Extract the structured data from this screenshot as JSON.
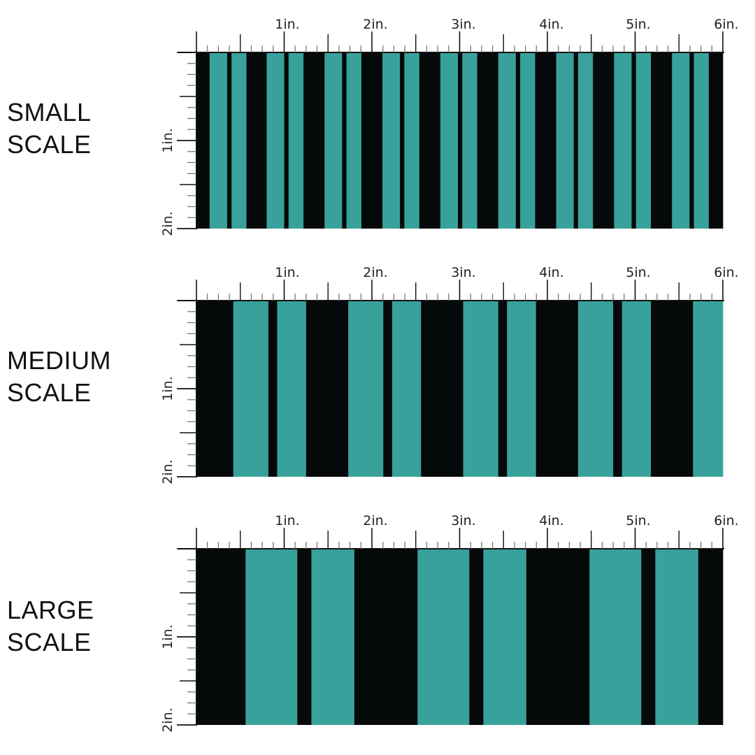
{
  "colors": {
    "stripe_teal": "#39a19b",
    "stripe_black": "#050909",
    "ruler_line": "#111111",
    "tick_gray": "#777777"
  },
  "ruler": {
    "top_labels": [
      "1in.",
      "2in.",
      "3in.",
      "4in.",
      "5in.",
      "6in."
    ],
    "side_labels": [
      "1in.",
      "2in."
    ]
  },
  "panels": [
    {
      "label_line1": "SMALL",
      "label_line2": "SCALE",
      "pattern": "teal and black vertical stripes, small scale",
      "stripes": [
        {
          "color": "black",
          "from_in": 0.0,
          "to_in": 0.15
        },
        {
          "color": "teal",
          "from_in": 0.15,
          "to_in": 0.35
        },
        {
          "color": "black",
          "from_in": 0.35,
          "to_in": 0.4
        },
        {
          "color": "teal",
          "from_in": 0.4,
          "to_in": 0.57
        },
        {
          "color": "black",
          "from_in": 0.57,
          "to_in": 0.8
        },
        {
          "color": "teal",
          "from_in": 0.8,
          "to_in": 1.0
        },
        {
          "color": "black",
          "from_in": 1.0,
          "to_in": 1.05
        },
        {
          "color": "teal",
          "from_in": 1.05,
          "to_in": 1.22
        },
        {
          "color": "black",
          "from_in": 1.22,
          "to_in": 1.46
        },
        {
          "color": "teal",
          "from_in": 1.46,
          "to_in": 1.66
        },
        {
          "color": "black",
          "from_in": 1.66,
          "to_in": 1.71
        },
        {
          "color": "teal",
          "from_in": 1.71,
          "to_in": 1.88
        },
        {
          "color": "black",
          "from_in": 1.88,
          "to_in": 2.12
        },
        {
          "color": "teal",
          "from_in": 2.12,
          "to_in": 2.32
        },
        {
          "color": "black",
          "from_in": 2.32,
          "to_in": 2.37
        },
        {
          "color": "teal",
          "from_in": 2.37,
          "to_in": 2.54
        },
        {
          "color": "black",
          "from_in": 2.54,
          "to_in": 2.78
        },
        {
          "color": "teal",
          "from_in": 2.78,
          "to_in": 2.98
        },
        {
          "color": "black",
          "from_in": 2.98,
          "to_in": 3.03
        },
        {
          "color": "teal",
          "from_in": 3.03,
          "to_in": 3.2
        },
        {
          "color": "black",
          "from_in": 3.2,
          "to_in": 3.44
        },
        {
          "color": "teal",
          "from_in": 3.44,
          "to_in": 3.64
        },
        {
          "color": "black",
          "from_in": 3.64,
          "to_in": 3.69
        },
        {
          "color": "teal",
          "from_in": 3.69,
          "to_in": 3.86
        },
        {
          "color": "black",
          "from_in": 3.86,
          "to_in": 4.1
        },
        {
          "color": "teal",
          "from_in": 4.1,
          "to_in": 4.3
        },
        {
          "color": "black",
          "from_in": 4.3,
          "to_in": 4.35
        },
        {
          "color": "teal",
          "from_in": 4.35,
          "to_in": 4.52
        },
        {
          "color": "black",
          "from_in": 4.52,
          "to_in": 4.76
        },
        {
          "color": "teal",
          "from_in": 4.76,
          "to_in": 4.96
        },
        {
          "color": "black",
          "from_in": 4.96,
          "to_in": 5.01
        },
        {
          "color": "teal",
          "from_in": 5.01,
          "to_in": 5.18
        },
        {
          "color": "black",
          "from_in": 5.18,
          "to_in": 5.42
        },
        {
          "color": "teal",
          "from_in": 5.42,
          "to_in": 5.62
        },
        {
          "color": "black",
          "from_in": 5.62,
          "to_in": 5.67
        },
        {
          "color": "teal",
          "from_in": 5.67,
          "to_in": 5.84
        },
        {
          "color": "black",
          "from_in": 5.84,
          "to_in": 6.0
        }
      ]
    },
    {
      "label_line1": "MEDIUM",
      "label_line2": "SCALE",
      "pattern": "teal and black vertical stripes, medium scale",
      "stripes": [
        {
          "color": "black",
          "from_in": 0.0,
          "to_in": 0.42
        },
        {
          "color": "teal",
          "from_in": 0.42,
          "to_in": 0.82
        },
        {
          "color": "black",
          "from_in": 0.82,
          "to_in": 0.92
        },
        {
          "color": "teal",
          "from_in": 0.92,
          "to_in": 1.25
        },
        {
          "color": "black",
          "from_in": 1.25,
          "to_in": 1.73
        },
        {
          "color": "teal",
          "from_in": 1.73,
          "to_in": 2.13
        },
        {
          "color": "black",
          "from_in": 2.13,
          "to_in": 2.23
        },
        {
          "color": "teal",
          "from_in": 2.23,
          "to_in": 2.56
        },
        {
          "color": "black",
          "from_in": 2.56,
          "to_in": 3.04
        },
        {
          "color": "teal",
          "from_in": 3.04,
          "to_in": 3.44
        },
        {
          "color": "black",
          "from_in": 3.44,
          "to_in": 3.54
        },
        {
          "color": "teal",
          "from_in": 3.54,
          "to_in": 3.87
        },
        {
          "color": "black",
          "from_in": 3.87,
          "to_in": 4.35
        },
        {
          "color": "teal",
          "from_in": 4.35,
          "to_in": 4.75
        },
        {
          "color": "black",
          "from_in": 4.75,
          "to_in": 4.85
        },
        {
          "color": "teal",
          "from_in": 4.85,
          "to_in": 5.18
        },
        {
          "color": "black",
          "from_in": 5.18,
          "to_in": 5.66
        },
        {
          "color": "teal",
          "from_in": 5.66,
          "to_in": 6.0
        }
      ]
    },
    {
      "label_line1": "LARGE",
      "label_line2": "SCALE",
      "pattern": "teal and black vertical stripes, large scale",
      "stripes": [
        {
          "color": "black",
          "from_in": 0.0,
          "to_in": 0.56
        },
        {
          "color": "teal",
          "from_in": 0.56,
          "to_in": 1.15
        },
        {
          "color": "black",
          "from_in": 1.15,
          "to_in": 1.31
        },
        {
          "color": "teal",
          "from_in": 1.31,
          "to_in": 1.8
        },
        {
          "color": "black",
          "from_in": 1.8,
          "to_in": 2.52
        },
        {
          "color": "teal",
          "from_in": 2.52,
          "to_in": 3.11
        },
        {
          "color": "black",
          "from_in": 3.11,
          "to_in": 3.27
        },
        {
          "color": "teal",
          "from_in": 3.27,
          "to_in": 3.76
        },
        {
          "color": "black",
          "from_in": 3.76,
          "to_in": 4.48
        },
        {
          "color": "teal",
          "from_in": 4.48,
          "to_in": 5.07
        },
        {
          "color": "black",
          "from_in": 5.07,
          "to_in": 5.23
        },
        {
          "color": "teal",
          "from_in": 5.23,
          "to_in": 5.72
        },
        {
          "color": "black",
          "from_in": 5.72,
          "to_in": 6.0
        }
      ]
    }
  ]
}
